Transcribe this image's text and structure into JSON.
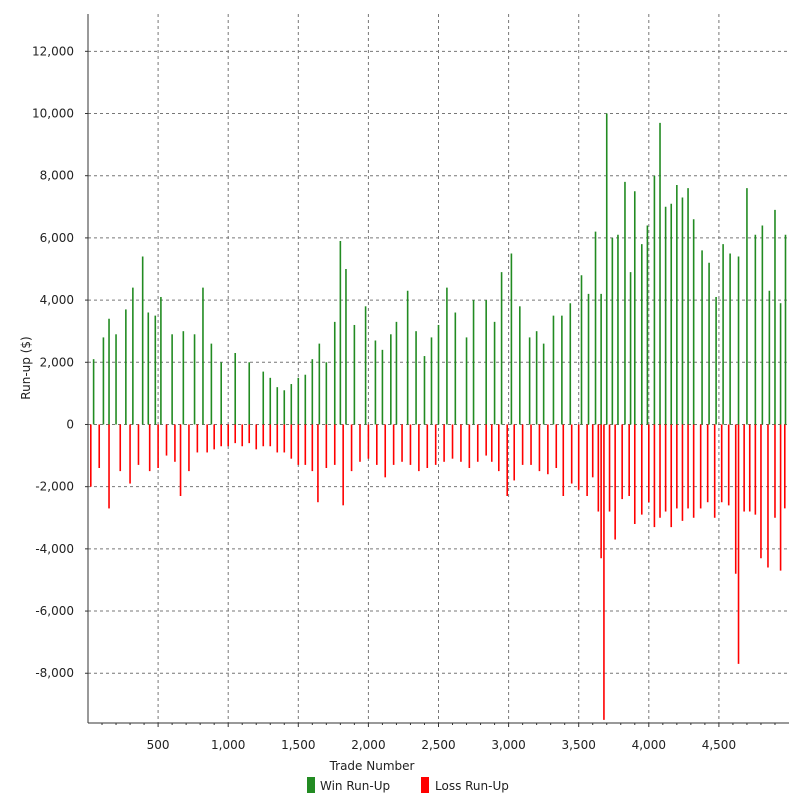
{
  "chart_data": {
    "type": "bar",
    "title": "",
    "xlabel": "Trade Number",
    "ylabel": "Run-up ($)",
    "xlim": [
      0,
      5000
    ],
    "ylim": [
      -9600,
      13200
    ],
    "x_ticks": [
      500,
      1000,
      1500,
      2000,
      2500,
      3000,
      3500,
      4000,
      4500
    ],
    "x_tick_labels": [
      "500",
      "1,000",
      "1,500",
      "2,000",
      "2,500",
      "3,000",
      "3,500",
      "4,000",
      "4,500"
    ],
    "y_ticks": [
      -8000,
      -6000,
      -4000,
      -2000,
      0,
      2000,
      4000,
      6000,
      8000,
      10000,
      12000
    ],
    "y_tick_labels": [
      "-8,000",
      "-6,000",
      "-4,000",
      "-2,000",
      "0",
      "2,000",
      "4,000",
      "6,000",
      "8,000",
      "10,000",
      "12,000"
    ],
    "grid": true,
    "legend_position": "bottom",
    "series": [
      {
        "name": "Win Run-Up",
        "color": "#228B22",
        "points": [
          [
            40,
            2100
          ],
          [
            110,
            2800
          ],
          [
            150,
            3400
          ],
          [
            200,
            2900
          ],
          [
            270,
            3700
          ],
          [
            320,
            4400
          ],
          [
            390,
            5400
          ],
          [
            430,
            3600
          ],
          [
            480,
            3500
          ],
          [
            520,
            4100
          ],
          [
            600,
            2900
          ],
          [
            680,
            3000
          ],
          [
            760,
            2900
          ],
          [
            820,
            4400
          ],
          [
            880,
            2600
          ],
          [
            950,
            2000
          ],
          [
            1050,
            2300
          ],
          [
            1150,
            2000
          ],
          [
            1250,
            1700
          ],
          [
            1300,
            1500
          ],
          [
            1350,
            1200
          ],
          [
            1400,
            1100
          ],
          [
            1450,
            1300
          ],
          [
            1500,
            1500
          ],
          [
            1550,
            1600
          ],
          [
            1600,
            2100
          ],
          [
            1650,
            2600
          ],
          [
            1700,
            2000
          ],
          [
            1760,
            3300
          ],
          [
            1800,
            5900
          ],
          [
            1840,
            5000
          ],
          [
            1900,
            3200
          ],
          [
            1980,
            3800
          ],
          [
            2050,
            2700
          ],
          [
            2100,
            2400
          ],
          [
            2160,
            2900
          ],
          [
            2200,
            3300
          ],
          [
            2280,
            4300
          ],
          [
            2340,
            3000
          ],
          [
            2400,
            2200
          ],
          [
            2450,
            2800
          ],
          [
            2500,
            3200
          ],
          [
            2560,
            4400
          ],
          [
            2620,
            3600
          ],
          [
            2700,
            2800
          ],
          [
            2750,
            4000
          ],
          [
            2840,
            4000
          ],
          [
            2900,
            3300
          ],
          [
            2950,
            4900
          ],
          [
            3020,
            5500
          ],
          [
            3080,
            3800
          ],
          [
            3150,
            2800
          ],
          [
            3200,
            3000
          ],
          [
            3250,
            2600
          ],
          [
            3320,
            3500
          ],
          [
            3380,
            3500
          ],
          [
            3440,
            3900
          ],
          [
            3520,
            4800
          ],
          [
            3570,
            4200
          ],
          [
            3620,
            6200
          ],
          [
            3660,
            4200
          ],
          [
            3700,
            10000
          ],
          [
            3740,
            6000
          ],
          [
            3780,
            6100
          ],
          [
            3830,
            7800
          ],
          [
            3870,
            4900
          ],
          [
            3900,
            7500
          ],
          [
            3950,
            5800
          ],
          [
            3990,
            6400
          ],
          [
            4040,
            8000
          ],
          [
            4080,
            9700
          ],
          [
            4120,
            7000
          ],
          [
            4160,
            7100
          ],
          [
            4200,
            7700
          ],
          [
            4240,
            7300
          ],
          [
            4280,
            7600
          ],
          [
            4320,
            6600
          ],
          [
            4380,
            5600
          ],
          [
            4430,
            5200
          ],
          [
            4480,
            4100
          ],
          [
            4530,
            5800
          ],
          [
            4580,
            5500
          ],
          [
            4640,
            5400
          ],
          [
            4700,
            7600
          ],
          [
            4760,
            6100
          ],
          [
            4810,
            6400
          ],
          [
            4860,
            4300
          ],
          [
            4900,
            6900
          ],
          [
            4940,
            3900
          ],
          [
            4975,
            6100
          ]
        ]
      },
      {
        "name": "Loss Run-Up",
        "color": "#FF0000",
        "points": [
          [
            20,
            -2000
          ],
          [
            80,
            -1400
          ],
          [
            150,
            -2700
          ],
          [
            230,
            -1500
          ],
          [
            300,
            -1900
          ],
          [
            360,
            -1300
          ],
          [
            440,
            -1500
          ],
          [
            500,
            -1400
          ],
          [
            560,
            -1000
          ],
          [
            620,
            -1200
          ],
          [
            660,
            -2300
          ],
          [
            720,
            -1500
          ],
          [
            780,
            -900
          ],
          [
            850,
            -900
          ],
          [
            900,
            -800
          ],
          [
            950,
            -700
          ],
          [
            1000,
            -700
          ],
          [
            1050,
            -600
          ],
          [
            1100,
            -700
          ],
          [
            1150,
            -600
          ],
          [
            1200,
            -800
          ],
          [
            1250,
            -700
          ],
          [
            1300,
            -700
          ],
          [
            1350,
            -900
          ],
          [
            1400,
            -900
          ],
          [
            1450,
            -1100
          ],
          [
            1500,
            -1300
          ],
          [
            1550,
            -1300
          ],
          [
            1600,
            -1500
          ],
          [
            1640,
            -2500
          ],
          [
            1700,
            -1400
          ],
          [
            1760,
            -1300
          ],
          [
            1820,
            -2600
          ],
          [
            1880,
            -1500
          ],
          [
            1940,
            -1200
          ],
          [
            2000,
            -1100
          ],
          [
            2060,
            -1300
          ],
          [
            2120,
            -1700
          ],
          [
            2180,
            -1300
          ],
          [
            2240,
            -1200
          ],
          [
            2300,
            -1300
          ],
          [
            2360,
            -1500
          ],
          [
            2420,
            -1400
          ],
          [
            2480,
            -1300
          ],
          [
            2540,
            -1200
          ],
          [
            2600,
            -1100
          ],
          [
            2660,
            -1200
          ],
          [
            2720,
            -1400
          ],
          [
            2780,
            -1200
          ],
          [
            2840,
            -1000
          ],
          [
            2880,
            -1200
          ],
          [
            2930,
            -1500
          ],
          [
            2990,
            -2300
          ],
          [
            3040,
            -1800
          ],
          [
            3100,
            -1300
          ],
          [
            3160,
            -1300
          ],
          [
            3220,
            -1500
          ],
          [
            3280,
            -1600
          ],
          [
            3340,
            -1400
          ],
          [
            3390,
            -2300
          ],
          [
            3450,
            -1900
          ],
          [
            3500,
            -2100
          ],
          [
            3560,
            -2300
          ],
          [
            3600,
            -1700
          ],
          [
            3640,
            -2800
          ],
          [
            3660,
            -4300
          ],
          [
            3680,
            -9500
          ],
          [
            3720,
            -2800
          ],
          [
            3760,
            -3700
          ],
          [
            3810,
            -2400
          ],
          [
            3860,
            -2300
          ],
          [
            3900,
            -3200
          ],
          [
            3950,
            -2900
          ],
          [
            4000,
            -2500
          ],
          [
            4040,
            -3300
          ],
          [
            4080,
            -3000
          ],
          [
            4120,
            -2800
          ],
          [
            4160,
            -3300
          ],
          [
            4200,
            -2700
          ],
          [
            4240,
            -3100
          ],
          [
            4280,
            -2700
          ],
          [
            4320,
            -3000
          ],
          [
            4370,
            -2700
          ],
          [
            4420,
            -2500
          ],
          [
            4470,
            -3000
          ],
          [
            4520,
            -2500
          ],
          [
            4570,
            -2600
          ],
          [
            4620,
            -4800
          ],
          [
            4640,
            -7700
          ],
          [
            4680,
            -2800
          ],
          [
            4720,
            -2800
          ],
          [
            4760,
            -2900
          ],
          [
            4800,
            -4300
          ],
          [
            4850,
            -4600
          ],
          [
            4900,
            -3000
          ],
          [
            4940,
            -4700
          ],
          [
            4970,
            -2700
          ]
        ]
      }
    ]
  }
}
